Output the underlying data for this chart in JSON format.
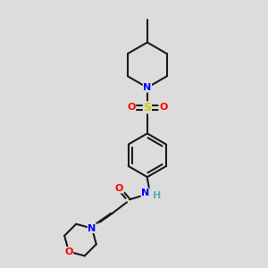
{
  "bg_color": "#dcdcdc",
  "bond_color": "#1a1a1a",
  "N_color": "#0000ff",
  "O_color": "#ff0000",
  "S_color": "#cccc00",
  "H_color": "#5aadad",
  "lw": 1.5,
  "fig_w": 3.0,
  "fig_h": 3.0,
  "dpi": 100,
  "xlim": [
    0,
    10
  ],
  "ylim": [
    0,
    10
  ]
}
